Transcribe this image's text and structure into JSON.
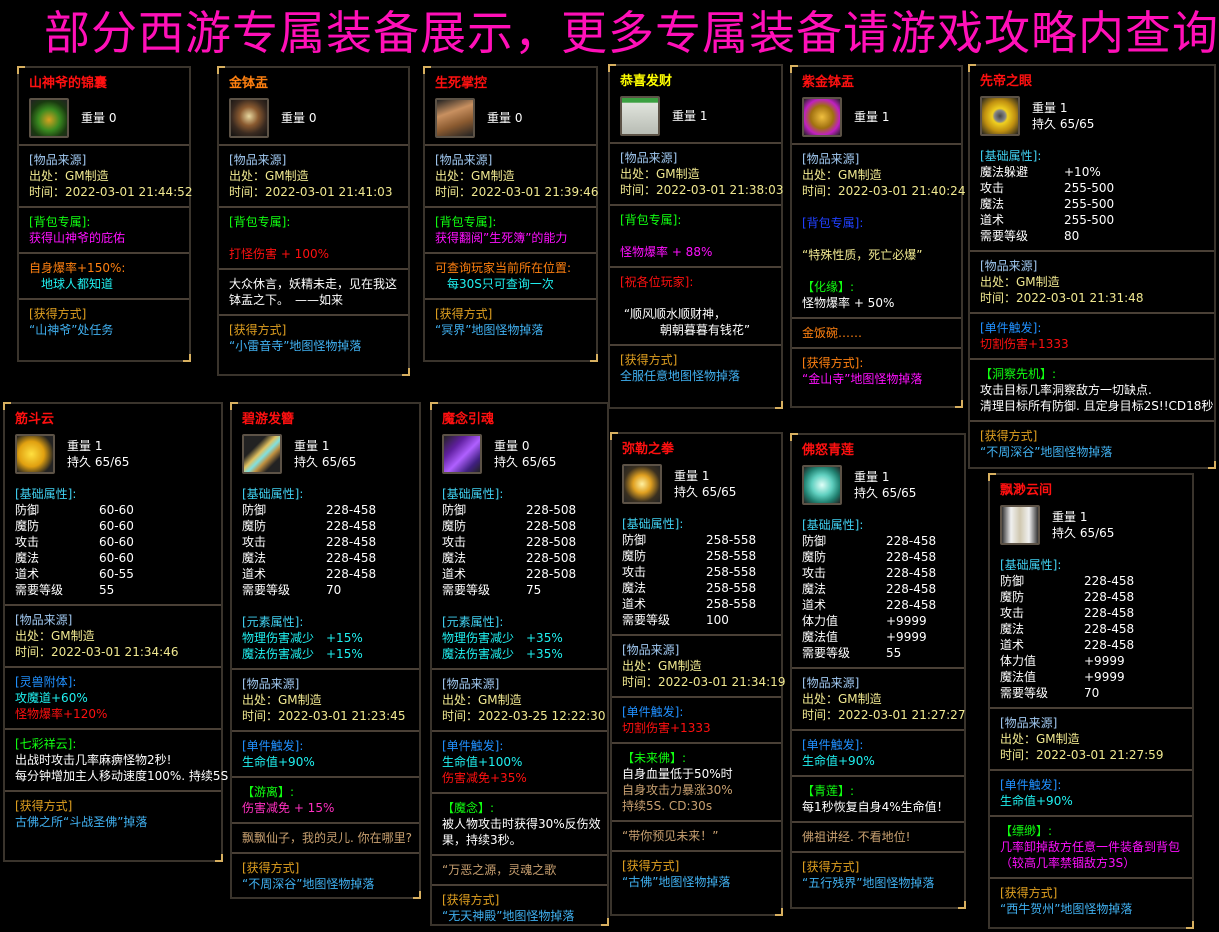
{
  "title": "部分西游专属装备展示，更多专属装备请游戏攻略内查询",
  "colors": {
    "title": "#ff10b8",
    "red": "#ff1010",
    "orange": "#ff8010",
    "yellow": "#ffff00",
    "white": "#ffffff",
    "lblue": "#a0c8f0",
    "src": "#f0e890",
    "green": "#10ff10",
    "magenta": "#ff10ff",
    "cyan": "#20f0f0",
    "gold": "#e0a020",
    "blue": "#40b0f0",
    "dblue": "#2090ff",
    "basic": "#40d0f0",
    "tan": "#c8a070",
    "pink": "#ff30c0",
    "royal": "#2040ff"
  },
  "cards": [
    {
      "name": "山神爷的锦囊",
      "name_color": "red",
      "icon": "brocade-pouch-icon",
      "stats": [
        "重量 0"
      ],
      "sections": [
        [
          {
            "t": "[物品来源]",
            "c": "lblue"
          },
          {
            "t": "出处：GM制造",
            "c": "src"
          },
          {
            "t": "时间：2022-03-01 21:44:52",
            "c": "src"
          }
        ],
        [
          {
            "t": "[背包专属]:",
            "c": "green"
          },
          {
            "t": "获得山神爷的庇佑",
            "c": "magenta"
          }
        ],
        [
          {
            "t": "自身爆率+150%:",
            "c": "orange"
          },
          {
            "t": "　地球人都知道",
            "c": "cyan"
          }
        ],
        [
          {
            "t": "[获得方式]",
            "c": "gold"
          },
          {
            "t": "“山神爷”处任务",
            "c": "blue"
          }
        ]
      ]
    },
    {
      "name": "金钵盂",
      "name_color": "orange",
      "icon": "alms-bowl-icon",
      "stats": [
        "重量 0"
      ],
      "sections": [
        [
          {
            "t": "[物品来源]",
            "c": "lblue"
          },
          {
            "t": "出处：GM制造",
            "c": "src"
          },
          {
            "t": "时间：2022-03-01 21:41:03",
            "c": "src"
          }
        ],
        [
          {
            "t": "[背包专属]:",
            "c": "green"
          },
          {
            "t": "",
            "c": "white"
          },
          {
            "t": "打怪伤害 + 100%",
            "c": "red"
          }
        ],
        [
          {
            "t": "大众休言，妖精未走，见在我这",
            "c": "white"
          },
          {
            "t": "钵盂之下。　——如来",
            "c": "white"
          }
        ],
        [
          {
            "t": "[获得方式]",
            "c": "gold"
          },
          {
            "t": "“小雷音寺”地图怪物掉落",
            "c": "blue"
          }
        ]
      ]
    },
    {
      "name": "生死掌控",
      "name_color": "red",
      "icon": "scroll-icon",
      "stats": [
        "重量 0"
      ],
      "sections": [
        [
          {
            "t": "[物品来源]",
            "c": "lblue"
          },
          {
            "t": "出处：GM制造",
            "c": "src"
          },
          {
            "t": "时间：2022-03-01 21:39:46",
            "c": "src"
          }
        ],
        [
          {
            "t": "[背包专属]:",
            "c": "green"
          },
          {
            "t": "获得翻阅”生死簿”的能力",
            "c": "magenta"
          }
        ],
        [
          {
            "t": "可查询玩家当前所在位置:",
            "c": "orange"
          },
          {
            "t": "　每30S只可查询一次",
            "c": "cyan"
          }
        ],
        [
          {
            "t": "[获得方式]",
            "c": "gold"
          },
          {
            "t": "“冥界”地图怪物掉落",
            "c": "blue"
          }
        ]
      ]
    },
    {
      "name": "恭喜发财",
      "name_color": "yellow",
      "icon": "mahjong-tile-icon",
      "stats": [
        "重量 1"
      ],
      "sections": [
        [
          {
            "t": "[物品来源]",
            "c": "lblue"
          },
          {
            "t": "出处：GM制造",
            "c": "src"
          },
          {
            "t": "时间：2022-03-01 21:38:03",
            "c": "src"
          }
        ],
        [
          {
            "t": "[背包专属]:",
            "c": "green"
          },
          {
            "t": "",
            "c": "white"
          },
          {
            "t": "怪物爆率 + 88%",
            "c": "magenta"
          }
        ],
        [
          {
            "t": "[祝各位玩家]:",
            "c": "red"
          },
          {
            "t": "",
            "c": "white"
          },
          {
            "t": " “顺风顺水顺财神，",
            "c": "white"
          },
          {
            "t": "　　　 朝朝暮暮有钱花”",
            "c": "white"
          }
        ],
        [
          {
            "t": "[获得方式]",
            "c": "gold"
          },
          {
            "t": "全服任意地图怪物掉落",
            "c": "blue"
          }
        ]
      ]
    },
    {
      "name": "紫金钵盂",
      "name_color": "red",
      "icon": "purple-gold-bowl-icon",
      "stats": [
        "重量 1"
      ],
      "sections": [
        [
          {
            "t": "[物品来源]",
            "c": "lblue"
          },
          {
            "t": "出处：GM制造",
            "c": "src"
          },
          {
            "t": "时间：2022-03-01 21:40:24",
            "c": "src"
          },
          {
            "t": "",
            "c": "white"
          },
          {
            "t": "[背包专属]:",
            "c": "royal"
          },
          {
            "t": "",
            "c": "white"
          },
          {
            "t": "“特殊性质，死亡必爆”",
            "c": "src"
          },
          {
            "t": "",
            "c": "white"
          },
          {
            "t": "【化缘】:",
            "c": "green"
          },
          {
            "t": "怪物爆率 + 50%",
            "c": "white"
          }
        ],
        [
          {
            "t": "金饭碗……",
            "c": "orange"
          }
        ],
        [
          {
            "t": "[获得方式]:",
            "c": "orange"
          },
          {
            "t": "“金山寺”地图怪物掉落",
            "c": "magenta"
          }
        ]
      ]
    },
    {
      "name": "先帝之眼",
      "name_color": "red",
      "icon": "golden-eye-icon",
      "stats": [
        "重量 1",
        "持久 65/65"
      ],
      "sections": [
        [
          {
            "t": "[基础属性]:",
            "c": "basic"
          },
          {
            "k": "魔法躲避",
            "v": "+10%",
            "c": "white"
          },
          {
            "k": "攻击",
            "v": "255-500",
            "c": "white"
          },
          {
            "k": "魔法",
            "v": "255-500",
            "c": "white"
          },
          {
            "k": "道术",
            "v": "255-500",
            "c": "white"
          },
          {
            "k": "需要等级",
            "v": "80",
            "c": "white"
          }
        ],
        [
          {
            "t": "[物品来源]",
            "c": "lblue"
          },
          {
            "t": "出处：GM制造",
            "c": "src"
          },
          {
            "t": "时间：2022-03-01 21:31:48",
            "c": "src"
          }
        ],
        [
          {
            "t": "[单件触发]:",
            "c": "dblue"
          },
          {
            "t": "切割伤害+1333",
            "c": "red"
          }
        ],
        [
          {
            "t": "【洞察先机】:",
            "c": "green"
          },
          {
            "t": "攻击目标几率洞察敌方一切缺点.",
            "c": "white"
          },
          {
            "t": "清理目标所有防御. 且定身目标2S!!CD18秒",
            "c": "white"
          }
        ],
        [
          {
            "t": "[获得方式]",
            "c": "gold"
          },
          {
            "t": "“不周深谷”地图怪物掉落",
            "c": "blue"
          }
        ]
      ]
    },
    {
      "name": "筋斗云",
      "name_color": "red",
      "icon": "somersault-cloud-icon",
      "stats": [
        "重量 1",
        "持久 65/65"
      ],
      "sections": [
        [
          {
            "t": "[基础属性]:",
            "c": "basic"
          },
          {
            "k": "防御",
            "v": "60-60",
            "c": "white"
          },
          {
            "k": "魔防",
            "v": "60-60",
            "c": "white"
          },
          {
            "k": "攻击",
            "v": "60-60",
            "c": "white"
          },
          {
            "k": "魔法",
            "v": "60-60",
            "c": "white"
          },
          {
            "k": "道术",
            "v": "60-55",
            "c": "white"
          },
          {
            "k": "需要等级",
            "v": "55",
            "c": "white"
          }
        ],
        [
          {
            "t": "[物品来源]",
            "c": "lblue"
          },
          {
            "t": "出处：GM制造",
            "c": "src"
          },
          {
            "t": "时间：2022-03-01 21:34:46",
            "c": "src"
          }
        ],
        [
          {
            "t": "[灵兽附体]:",
            "c": "dblue"
          },
          {
            "t": "攻魔道+60%",
            "c": "cyan"
          },
          {
            "t": "怪物爆率+120%",
            "c": "red"
          }
        ],
        [
          {
            "t": "[七彩祥云]:",
            "c": "green"
          },
          {
            "t": "出战时攻击几率麻痹怪物2秒!",
            "c": "white"
          },
          {
            "t": "每分钟增加主人移动速度100%. 持续5S",
            "c": "white"
          }
        ],
        [
          {
            "t": "[获得方式]",
            "c": "gold"
          },
          {
            "t": "古佛之所“斗战圣佛”掉落",
            "c": "blue"
          }
        ]
      ]
    },
    {
      "name": "碧游发簪",
      "name_color": "red",
      "icon": "hairpin-icon",
      "stats": [
        "重量 1",
        "持久 65/65"
      ],
      "sections": [
        [
          {
            "t": "[基础属性]:",
            "c": "basic"
          },
          {
            "k": "防御",
            "v": "228-458",
            "c": "white"
          },
          {
            "k": "魔防",
            "v": "228-458",
            "c": "white"
          },
          {
            "k": "攻击",
            "v": "228-458",
            "c": "white"
          },
          {
            "k": "魔法",
            "v": "228-458",
            "c": "white"
          },
          {
            "k": "道术",
            "v": "228-458",
            "c": "white"
          },
          {
            "k": "需要等级",
            "v": "70",
            "c": "white"
          },
          {
            "t": "",
            "c": "white"
          },
          {
            "t": "[元素属性]:",
            "c": "basic"
          },
          {
            "k": "物理伤害减少",
            "v": "+15%",
            "c": "cyan"
          },
          {
            "k": "魔法伤害减少",
            "v": "+15%",
            "c": "cyan"
          }
        ],
        [
          {
            "t": "[物品来源]",
            "c": "lblue"
          },
          {
            "t": "出处：GM制造",
            "c": "src"
          },
          {
            "t": "时间：2022-03-01 21:23:45",
            "c": "src"
          }
        ],
        [
          {
            "t": "[单件触发]:",
            "c": "dblue"
          },
          {
            "t": "生命值+90%",
            "c": "cyan"
          }
        ],
        [
          {
            "t": "【游离】:",
            "c": "green"
          },
          {
            "t": "伤害减免 + 15%",
            "c": "pink"
          }
        ],
        [
          {
            "t": "飘飘仙子，我的灵儿. 你在哪里?",
            "c": "tan"
          }
        ],
        [
          {
            "t": "[获得方式]",
            "c": "gold"
          },
          {
            "t": "“不周深谷”地图怪物掉落",
            "c": "blue"
          }
        ]
      ]
    },
    {
      "name": "魔念引魂",
      "name_color": "red",
      "icon": "demon-soul-icon",
      "stats": [
        "重量 0",
        "持久 65/65"
      ],
      "sections": [
        [
          {
            "t": "[基础属性]:",
            "c": "basic"
          },
          {
            "k": "防御",
            "v": "228-508",
            "c": "white"
          },
          {
            "k": "魔防",
            "v": "228-508",
            "c": "white"
          },
          {
            "k": "攻击",
            "v": "228-508",
            "c": "white"
          },
          {
            "k": "魔法",
            "v": "228-508",
            "c": "white"
          },
          {
            "k": "道术",
            "v": "228-508",
            "c": "white"
          },
          {
            "k": "需要等级",
            "v": "75",
            "c": "white"
          },
          {
            "t": "",
            "c": "white"
          },
          {
            "t": "[元素属性]:",
            "c": "basic"
          },
          {
            "k": "物理伤害减少",
            "v": "+35%",
            "c": "cyan"
          },
          {
            "k": "魔法伤害减少",
            "v": "+35%",
            "c": "cyan"
          }
        ],
        [
          {
            "t": "[物品来源]",
            "c": "lblue"
          },
          {
            "t": "出处：GM制造",
            "c": "src"
          },
          {
            "t": "时间：2022-03-25 12:22:30",
            "c": "src"
          }
        ],
        [
          {
            "t": "[单件触发]:",
            "c": "dblue"
          },
          {
            "t": "生命值+100%",
            "c": "cyan"
          },
          {
            "t": "伤害减免+35%",
            "c": "red"
          }
        ],
        [
          {
            "t": "【魔念】:",
            "c": "green"
          },
          {
            "t": "被人物攻击时获得30%反伤效",
            "c": "white"
          },
          {
            "t": "果，持续3秒。",
            "c": "white"
          }
        ],
        [
          {
            "t": "“万恶之源，灵魂之歌",
            "c": "tan"
          }
        ],
        [
          {
            "t": "[获得方式]",
            "c": "gold"
          },
          {
            "t": "“无天神殿”地图怪物掉落",
            "c": "blue"
          }
        ]
      ]
    },
    {
      "name": "弥勒之拳",
      "name_color": "red",
      "icon": "maitreya-fist-icon",
      "stats": [
        "重量 1",
        "持久 65/65"
      ],
      "sections": [
        [
          {
            "t": "[基础属性]:",
            "c": "basic"
          },
          {
            "k": "防御",
            "v": "258-558",
            "c": "white"
          },
          {
            "k": "魔防",
            "v": "258-558",
            "c": "white"
          },
          {
            "k": "攻击",
            "v": "258-558",
            "c": "white"
          },
          {
            "k": "魔法",
            "v": "258-558",
            "c": "white"
          },
          {
            "k": "道术",
            "v": "258-558",
            "c": "white"
          },
          {
            "k": "需要等级",
            "v": "100",
            "c": "white"
          }
        ],
        [
          {
            "t": "[物品来源]",
            "c": "lblue"
          },
          {
            "t": "出处：GM制造",
            "c": "src"
          },
          {
            "t": "时间：2022-03-01 21:34:19",
            "c": "src"
          }
        ],
        [
          {
            "t": "[单件触发]:",
            "c": "dblue"
          },
          {
            "t": "切割伤害+1333",
            "c": "red"
          }
        ],
        [
          {
            "t": "【未来佛】:",
            "c": "green"
          },
          {
            "t": "自身血量低于50%时",
            "c": "white"
          },
          {
            "t": "自身攻击力暴涨30%",
            "c": "tan"
          },
          {
            "t": "持续5S. CD:30s",
            "c": "tan"
          }
        ],
        [
          {
            "t": "“带你预见未来！”",
            "c": "tan"
          }
        ],
        [
          {
            "t": "[获得方式]",
            "c": "gold"
          },
          {
            "t": "“古佛”地图怪物掉落",
            "c": "blue"
          }
        ]
      ]
    },
    {
      "name": "佛怒青莲",
      "name_color": "red",
      "icon": "lotus-icon",
      "stats": [
        "重量 1",
        "持久 65/65"
      ],
      "sections": [
        [
          {
            "t": "[基础属性]:",
            "c": "basic"
          },
          {
            "k": "防御",
            "v": "228-458",
            "c": "white"
          },
          {
            "k": "魔防",
            "v": "228-458",
            "c": "white"
          },
          {
            "k": "攻击",
            "v": "228-458",
            "c": "white"
          },
          {
            "k": "魔法",
            "v": "228-458",
            "c": "white"
          },
          {
            "k": "道术",
            "v": "228-458",
            "c": "white"
          },
          {
            "k": "体力值",
            "v": "+9999",
            "c": "white"
          },
          {
            "k": "魔法值",
            "v": "+9999",
            "c": "white"
          },
          {
            "k": "需要等级",
            "v": "55",
            "c": "white"
          }
        ],
        [
          {
            "t": "[物品来源]",
            "c": "lblue"
          },
          {
            "t": "出处：GM制造",
            "c": "src"
          },
          {
            "t": "时间：2022-03-01 21:27:27",
            "c": "src"
          }
        ],
        [
          {
            "t": "[单件触发]:",
            "c": "dblue"
          },
          {
            "t": "生命值+90%",
            "c": "cyan"
          }
        ],
        [
          {
            "t": "【青莲】:",
            "c": "green"
          },
          {
            "t": "每1秒恢复自身4%生命值！",
            "c": "white"
          }
        ],
        [
          {
            "t": "佛祖讲经. 不看地位!",
            "c": "tan"
          }
        ],
        [
          {
            "t": "[获得方式]",
            "c": "gold"
          },
          {
            "t": "“五行残界”地图怪物掉落",
            "c": "blue"
          }
        ]
      ]
    },
    {
      "name": "飘渺云间",
      "name_color": "red",
      "icon": "cloud-boots-icon",
      "stats": [
        "重量 1",
        "持久 65/65"
      ],
      "sections": [
        [
          {
            "t": "[基础属性]:",
            "c": "basic"
          },
          {
            "k": "防御",
            "v": "228-458",
            "c": "white"
          },
          {
            "k": "魔防",
            "v": "228-458",
            "c": "white"
          },
          {
            "k": "攻击",
            "v": "228-458",
            "c": "white"
          },
          {
            "k": "魔法",
            "v": "228-458",
            "c": "white"
          },
          {
            "k": "道术",
            "v": "228-458",
            "c": "white"
          },
          {
            "k": "体力值",
            "v": "+9999",
            "c": "white"
          },
          {
            "k": "魔法值",
            "v": "+9999",
            "c": "white"
          },
          {
            "k": "需要等级",
            "v": "70",
            "c": "white"
          }
        ],
        [
          {
            "t": "[物品来源]",
            "c": "lblue"
          },
          {
            "t": "出处：GM制造",
            "c": "src"
          },
          {
            "t": "时间：2022-03-01 21:27:59",
            "c": "src"
          }
        ],
        [
          {
            "t": "[单件触发]:",
            "c": "dblue"
          },
          {
            "t": "生命值+90%",
            "c": "cyan"
          }
        ],
        [
          {
            "t": "【缥缈】:",
            "c": "green"
          },
          {
            "t": "几率卸掉敌方任意一件装备到背包",
            "c": "magenta"
          },
          {
            "t": "（较高几率禁锢敌方3S）",
            "c": "magenta"
          }
        ],
        [
          {
            "t": "[获得方式]",
            "c": "gold"
          },
          {
            "t": "“西牛贺州”地图怪物掉落",
            "c": "blue"
          }
        ]
      ]
    }
  ]
}
